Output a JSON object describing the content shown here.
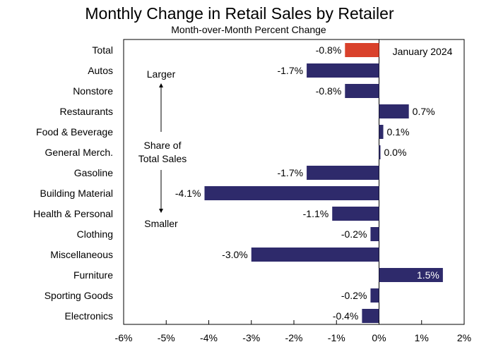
{
  "chart_data": {
    "type": "bar",
    "orientation": "horizontal",
    "title": "Monthly Change in Retail Sales by Retailer",
    "subtitle": "Month-over-Month Percent Change",
    "legend": "January 2024",
    "xlim": [
      -6,
      2
    ],
    "x_ticks": [
      -6,
      -5,
      -4,
      -3,
      -2,
      -1,
      0,
      1,
      2
    ],
    "x_tick_labels": [
      "-6%",
      "-5%",
      "-4%",
      "-3%",
      "-2%",
      "-1%",
      "0%",
      "1%",
      "2%"
    ],
    "categories": [
      "Total",
      "Autos",
      "Nonstore",
      "Restaurants",
      "Food & Beverage",
      "General Merch.",
      "Gasoline",
      "Building Material",
      "Health & Personal",
      "Clothing",
      "Miscellaneous",
      "Furniture",
      "Sporting Goods",
      "Electronics"
    ],
    "values": [
      -0.8,
      -1.7,
      -0.8,
      0.7,
      0.1,
      0.0,
      -1.7,
      -4.1,
      -1.1,
      -0.2,
      -3.0,
      1.5,
      -0.2,
      -0.4
    ],
    "value_labels": [
      "-0.8%",
      "-1.7%",
      "-0.8%",
      "0.7%",
      "0.1%",
      "0.0%",
      "-1.7%",
      "-4.1%",
      "-1.1%",
      "-0.2%",
      "-3.0%",
      "1.5%",
      "-0.2%",
      "-0.4%"
    ],
    "colors": {
      "total": "#d9412b",
      "bar": "#2e2a6b",
      "axis": "#000000"
    },
    "annotations": {
      "larger": "Larger",
      "share_line1": "Share of",
      "share_line2": "Total Sales",
      "smaller": "Smaller"
    }
  }
}
